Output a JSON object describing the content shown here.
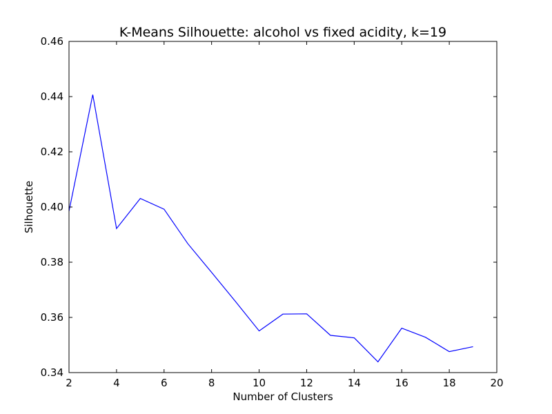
{
  "chart_data": {
    "type": "line",
    "title": "K-Means Silhouette: alcohol vs fixed acidity, k=19",
    "xlabel": "Number of Clusters",
    "ylabel": "Silhouette",
    "xlim": [
      2,
      20
    ],
    "ylim": [
      0.34,
      0.46
    ],
    "xticks": [
      2,
      4,
      6,
      8,
      10,
      12,
      14,
      16,
      18,
      20
    ],
    "xtick_labels": [
      "2",
      "4",
      "6",
      "8",
      "10",
      "12",
      "14",
      "16",
      "18",
      "20"
    ],
    "yticks": [
      0.34,
      0.36,
      0.38,
      0.4,
      0.42,
      0.44,
      0.46
    ],
    "ytick_labels": [
      "0.34",
      "0.36",
      "0.38",
      "0.40",
      "0.42",
      "0.44",
      "0.46"
    ],
    "grid": false,
    "line_color": "#0000ff",
    "series": [
      {
        "x": [
          2,
          3,
          4,
          5,
          6,
          7,
          8,
          9,
          10,
          11,
          12,
          13,
          14,
          15,
          16,
          17,
          18,
          19
        ],
        "values": [
          0.3985,
          0.4407,
          0.3922,
          0.4031,
          0.3992,
          0.3867,
          0.3763,
          0.3658,
          0.3551,
          0.3612,
          0.3613,
          0.3535,
          0.3526,
          0.3439,
          0.3561,
          0.3528,
          0.3476,
          0.3494
        ]
      }
    ]
  }
}
